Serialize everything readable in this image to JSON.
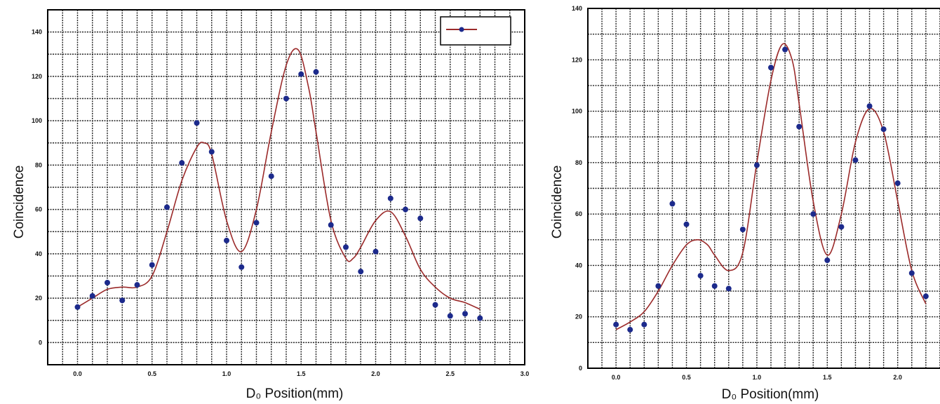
{
  "chart_data": [
    {
      "type": "scatter",
      "xlabel": "D₀ Position(mm)",
      "ylabel": "Coincidence",
      "xlim": [
        -0.2,
        3.0
      ],
      "ylim": [
        -10,
        150
      ],
      "xticks": [
        0.0,
        0.5,
        1.0,
        1.5,
        2.0,
        2.5,
        3.0
      ],
      "xtick_labels": [
        "0.0",
        "0.5",
        "1.0",
        "1.5",
        "2.0",
        "2.5",
        "3.0"
      ],
      "yticks": [
        0,
        20,
        40,
        60,
        80,
        100,
        120,
        140
      ],
      "ytick_labels": [
        "0",
        "20",
        "40",
        "60",
        "80",
        "100",
        "120",
        "140"
      ],
      "grid": true,
      "legend": "top-right",
      "colors": {
        "points": "#1c2a8c",
        "fit": "#9b2a2a"
      },
      "series": [
        {
          "kind": "points",
          "x": [
            0.0,
            0.1,
            0.2,
            0.3,
            0.4,
            0.5,
            0.6,
            0.7,
            0.8,
            0.9,
            1.0,
            1.1,
            1.2,
            1.3,
            1.4,
            1.5,
            1.6,
            1.7,
            1.8,
            1.9,
            2.0,
            2.1,
            2.2,
            2.3,
            2.4,
            2.5,
            2.6,
            2.7
          ],
          "y": [
            16,
            21,
            27,
            19,
            26,
            35,
            61,
            81,
            99,
            86,
            46,
            34,
            54,
            75,
            110,
            121,
            122,
            53,
            43,
            32,
            41,
            65,
            60,
            56,
            17,
            12,
            13,
            11
          ]
        },
        {
          "kind": "fit",
          "x": [
            0.0,
            0.1,
            0.2,
            0.3,
            0.4,
            0.5,
            0.6,
            0.7,
            0.8,
            0.85,
            0.9,
            1.0,
            1.1,
            1.2,
            1.3,
            1.4,
            1.48,
            1.55,
            1.6,
            1.7,
            1.8,
            1.85,
            1.9,
            2.0,
            2.1,
            2.2,
            2.3,
            2.4,
            2.5,
            2.6,
            2.7
          ],
          "y": [
            16,
            20,
            24,
            25,
            25,
            30,
            50,
            73,
            88,
            90,
            85,
            55,
            41,
            60,
            95,
            125,
            132,
            115,
            95,
            55,
            38,
            38,
            43,
            55,
            59,
            48,
            33,
            25,
            20,
            18,
            15
          ]
        }
      ]
    },
    {
      "type": "scatter",
      "xlabel": "D₀ Position(mm)",
      "ylabel": "Coincidence",
      "xlim": [
        -0.2,
        2.4
      ],
      "ylim": [
        0,
        140
      ],
      "xticks": [
        0.0,
        0.5,
        1.0,
        1.5,
        2.0
      ],
      "xtick_labels": [
        "0.0",
        "0.5",
        "1.0",
        "1.5",
        "2.0"
      ],
      "yticks": [
        0,
        20,
        40,
        60,
        80,
        100,
        120,
        140
      ],
      "ytick_labels": [
        "0",
        "20",
        "40",
        "60",
        "80",
        "100",
        "120",
        "140"
      ],
      "grid": true,
      "colors": {
        "points": "#1c2a8c",
        "fit": "#9b2a2a"
      },
      "series": [
        {
          "kind": "points",
          "x": [
            0.0,
            0.1,
            0.2,
            0.3,
            0.4,
            0.5,
            0.6,
            0.7,
            0.8,
            0.9,
            1.0,
            1.1,
            1.2,
            1.3,
            1.4,
            1.5,
            1.6,
            1.7,
            1.8,
            1.9,
            2.0,
            2.1,
            2.2
          ],
          "y": [
            17,
            15,
            17,
            32,
            64,
            56,
            36,
            32,
            31,
            54,
            79,
            117,
            124,
            94,
            60,
            42,
            55,
            81,
            102,
            93,
            72,
            37,
            28
          ]
        },
        {
          "kind": "fit",
          "x": [
            0.0,
            0.1,
            0.2,
            0.3,
            0.4,
            0.5,
            0.58,
            0.65,
            0.7,
            0.8,
            0.9,
            1.0,
            1.1,
            1.18,
            1.25,
            1.3,
            1.4,
            1.5,
            1.6,
            1.7,
            1.8,
            1.9,
            2.0,
            2.1,
            2.2
          ],
          "y": [
            15,
            18,
            22,
            30,
            40,
            48,
            50,
            48,
            44,
            38,
            45,
            80,
            112,
            126,
            120,
            103,
            65,
            44,
            60,
            88,
            101,
            92,
            65,
            38,
            25
          ]
        }
      ]
    }
  ]
}
